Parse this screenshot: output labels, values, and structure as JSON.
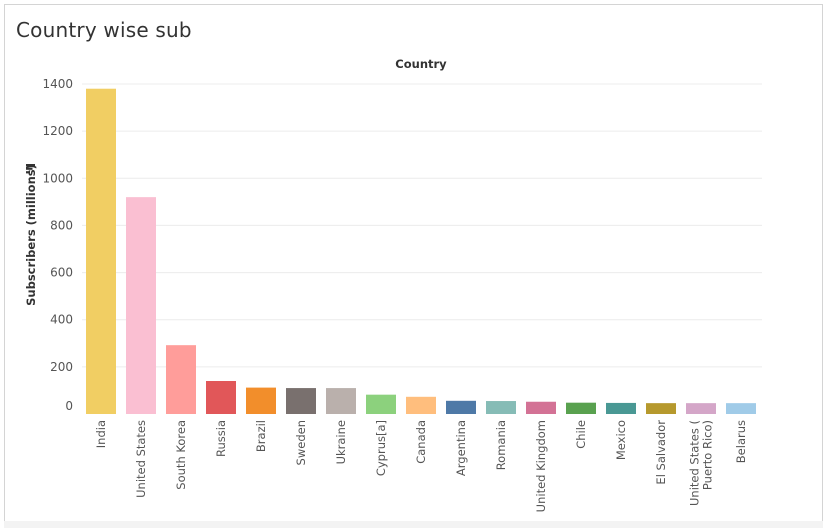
{
  "page": {
    "title": "Country wise sub"
  },
  "chart_data": {
    "type": "bar",
    "title": "Country wise sub",
    "column_header": "Country",
    "xlabel": "Country",
    "ylabel": "Subscribers (millions)",
    "ylim": [
      0,
      1400
    ],
    "yticks": [
      0,
      200,
      400,
      600,
      800,
      1000,
      1200,
      1400
    ],
    "grid": true,
    "categories": [
      "India",
      "United States",
      "South Korea",
      "Russia",
      "Brazil",
      "Sweden",
      "Ukraine",
      "Cyprus[a]",
      "Canada",
      "Argentina",
      "Romania",
      "United Kingdom",
      "Chile",
      "Mexico",
      "El Salvador",
      "United States (\nPuerto Rico)",
      "Belarus"
    ],
    "values": [
      1380,
      920,
      292,
      140,
      112,
      110,
      110,
      82,
      73,
      56,
      55,
      52,
      48,
      47,
      46,
      46,
      46
    ],
    "colors": [
      "#f1ce63",
      "#fabfd2",
      "#ff9d9a",
      "#e15759",
      "#f28e2b",
      "#79706e",
      "#bab0ac",
      "#8cd17d",
      "#ffbe7d",
      "#4e79a7",
      "#86bcb6",
      "#d37295",
      "#59a14f",
      "#499894",
      "#b6992d",
      "#d4a6c8",
      "#a0cbe8"
    ],
    "sort_icon": "sort-descending-icon"
  }
}
